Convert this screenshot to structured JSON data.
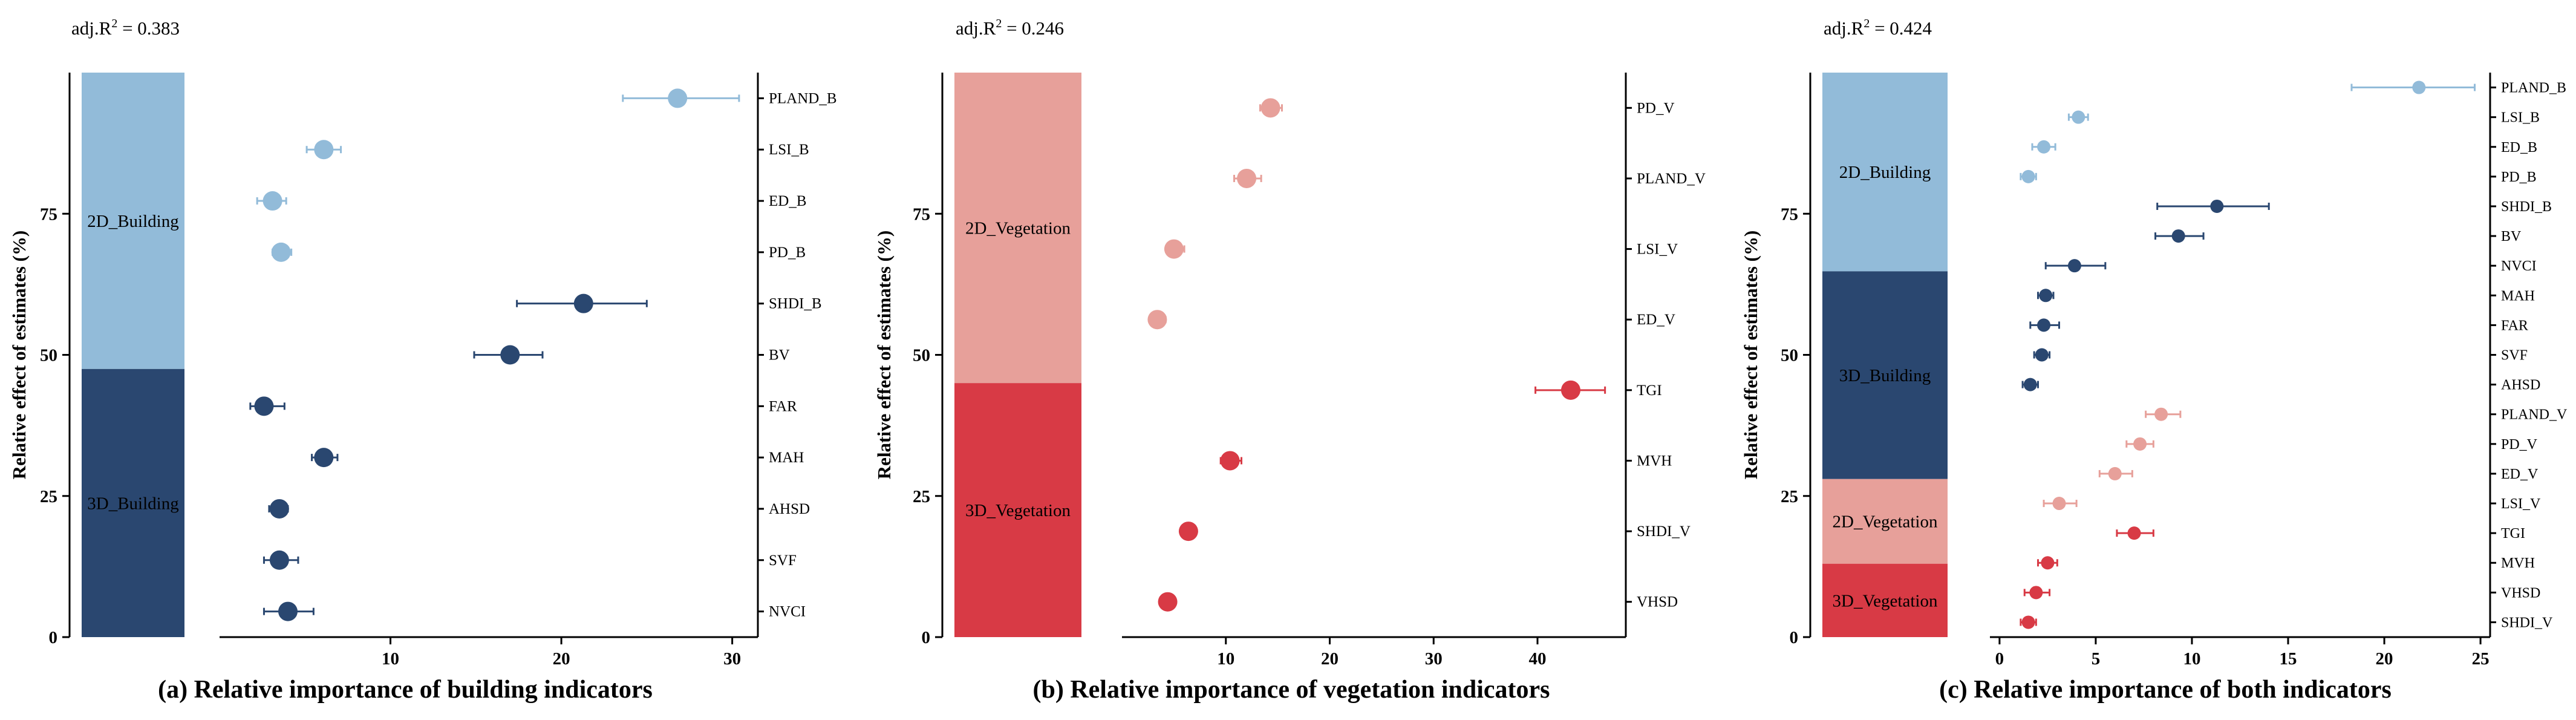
{
  "colors": {
    "building_2d": "#92bbd9",
    "building_3d": "#2a4770",
    "vegetation_2d": "#e7a09a",
    "vegetation_3d": "#d83a45"
  },
  "chart_data": [
    {
      "type": "scatter",
      "panel_id": "a",
      "adj_r2_label": "adj.R",
      "adj_r2_sup": "2",
      "adj_r2_value": " = 0.383",
      "caption_prefix": "(a)",
      "caption_text": " Relative importance of building indicators",
      "ylabel": "Relative effect of estimates (%)",
      "yticks": [
        "0",
        "25",
        "50",
        "75"
      ],
      "ytick_values": [
        0,
        25,
        50,
        75
      ],
      "ylim": [
        0,
        100
      ],
      "xticks": [
        "10",
        "20",
        "30"
      ],
      "xtick_values": [
        10,
        20,
        30
      ],
      "xlim": [
        0,
        31.5
      ],
      "groups": [
        {
          "label": "2D_Building",
          "share": 52.5,
          "color": "#92bbd9"
        },
        {
          "label": "3D_Building",
          "share": 47.5,
          "color": "#2a4770"
        }
      ],
      "points": [
        {
          "label": "PLAND_B",
          "value": 26.8,
          "err_low": 23.6,
          "err_high": 30.4,
          "color": "#92bbd9"
        },
        {
          "label": "LSI_B",
          "value": 6.1,
          "err_low": 5.1,
          "err_high": 7.1,
          "color": "#92bbd9"
        },
        {
          "label": "ED_B",
          "value": 3.1,
          "err_low": 2.2,
          "err_high": 3.9,
          "color": "#92bbd9"
        },
        {
          "label": "PD_B",
          "value": 3.6,
          "err_low": 3.1,
          "err_high": 4.2,
          "color": "#92bbd9"
        },
        {
          "label": "SHDI_B",
          "value": 21.3,
          "err_low": 17.4,
          "err_high": 25.0,
          "color": "#2a4770"
        },
        {
          "label": "BV",
          "value": 17.0,
          "err_low": 14.9,
          "err_high": 18.9,
          "color": "#2a4770"
        },
        {
          "label": "FAR",
          "value": 2.6,
          "err_low": 1.8,
          "err_high": 3.8,
          "color": "#2a4770"
        },
        {
          "label": "MAH",
          "value": 6.1,
          "err_low": 5.4,
          "err_high": 6.9,
          "color": "#2a4770"
        },
        {
          "label": "AHSD",
          "value": 3.5,
          "err_low": 2.9,
          "err_high": 4.0,
          "color": "#2a4770"
        },
        {
          "label": "SVF",
          "value": 3.5,
          "err_low": 2.6,
          "err_high": 4.6,
          "color": "#2a4770"
        },
        {
          "label": "NVCI",
          "value": 4.0,
          "err_low": 2.6,
          "err_high": 5.5,
          "color": "#2a4770"
        }
      ]
    },
    {
      "type": "scatter",
      "panel_id": "b",
      "adj_r2_label": "adj.R",
      "adj_r2_sup": "2",
      "adj_r2_value": " = 0.246",
      "caption_prefix": "(b)",
      "caption_text": " Relative importance of vegetation indicators",
      "ylabel": "Relative effect of estimates (%)",
      "yticks": [
        "0",
        "25",
        "50",
        "75"
      ],
      "ytick_values": [
        0,
        25,
        50,
        75
      ],
      "ylim": [
        0,
        100
      ],
      "xticks": [
        "10",
        "20",
        "30",
        "40"
      ],
      "xtick_values": [
        10,
        20,
        30,
        40
      ],
      "xlim": [
        0,
        48.5
      ],
      "groups": [
        {
          "label": "2D_Vegetation",
          "share": 55.0,
          "color": "#e7a09a"
        },
        {
          "label": "3D_Vegetation",
          "share": 45.0,
          "color": "#d83a45"
        }
      ],
      "points": [
        {
          "label": "PD_V",
          "value": 14.3,
          "err_low": 13.3,
          "err_high": 15.4,
          "color": "#e7a09a"
        },
        {
          "label": "PLAND_V",
          "value": 12.0,
          "err_low": 10.8,
          "err_high": 13.4,
          "color": "#e7a09a"
        },
        {
          "label": "LSI_V",
          "value": 5.0,
          "err_low": 4.3,
          "err_high": 6.0,
          "color": "#e7a09a"
        },
        {
          "label": "ED_V",
          "value": 3.4,
          "err_low": 2.8,
          "err_high": 4.2,
          "color": "#e7a09a"
        },
        {
          "label": "TGI",
          "value": 43.2,
          "err_low": 39.8,
          "err_high": 46.5,
          "color": "#d83a45"
        },
        {
          "label": "MVH",
          "value": 10.4,
          "err_low": 9.5,
          "err_high": 11.5,
          "color": "#d83a45"
        },
        {
          "label": "SHDI_V",
          "value": 6.4,
          "err_low": 5.7,
          "err_high": 7.1,
          "color": "#d83a45"
        },
        {
          "label": "VHSD",
          "value": 4.4,
          "err_low": 3.8,
          "err_high": 5.1,
          "color": "#d83a45"
        }
      ]
    },
    {
      "type": "scatter",
      "panel_id": "c",
      "adj_r2_label": "adj.R",
      "adj_r2_sup": "2",
      "adj_r2_value": " = 0.424",
      "caption_prefix": "(c)",
      "caption_text": " Relative importance of both indicators",
      "ylabel": "Relative effect of estimates (%)",
      "yticks": [
        "0",
        "25",
        "50",
        "75"
      ],
      "ytick_values": [
        0,
        25,
        50,
        75
      ],
      "ylim": [
        0,
        100
      ],
      "xticks": [
        "0",
        "5",
        "10",
        "15",
        "20",
        "25"
      ],
      "xtick_values": [
        0,
        5,
        10,
        15,
        20,
        25
      ],
      "xlim": [
        -0.5,
        25.5
      ],
      "groups": [
        {
          "label": "2D_Building",
          "share": 35.2,
          "color": "#92bbd9"
        },
        {
          "label": "3D_Building",
          "share": 36.8,
          "color": "#2a4770"
        },
        {
          "label": "2D_Vegetation",
          "share": 15.0,
          "color": "#e7a09a"
        },
        {
          "label": "3D_Vegetation",
          "share": 13.0,
          "color": "#d83a45"
        }
      ],
      "points": [
        {
          "label": "PLAND_B",
          "value": 21.8,
          "err_low": 18.3,
          "err_high": 24.7,
          "color": "#92bbd9"
        },
        {
          "label": "LSI_B",
          "value": 4.1,
          "err_low": 3.6,
          "err_high": 4.6,
          "color": "#92bbd9"
        },
        {
          "label": "ED_B",
          "value": 2.3,
          "err_low": 1.7,
          "err_high": 2.9,
          "color": "#92bbd9"
        },
        {
          "label": "PD_B",
          "value": 1.5,
          "err_low": 1.1,
          "err_high": 1.9,
          "color": "#92bbd9"
        },
        {
          "label": "SHDI_B",
          "value": 11.3,
          "err_low": 8.2,
          "err_high": 14.0,
          "color": "#2a4770"
        },
        {
          "label": "BV",
          "value": 9.3,
          "err_low": 8.1,
          "err_high": 10.6,
          "color": "#2a4770"
        },
        {
          "label": "NVCI",
          "value": 3.9,
          "err_low": 2.4,
          "err_high": 5.5,
          "color": "#2a4770"
        },
        {
          "label": "MAH",
          "value": 2.4,
          "err_low": 2.0,
          "err_high": 2.8,
          "color": "#2a4770"
        },
        {
          "label": "FAR",
          "value": 2.3,
          "err_low": 1.6,
          "err_high": 3.1,
          "color": "#2a4770"
        },
        {
          "label": "SVF",
          "value": 2.2,
          "err_low": 1.8,
          "err_high": 2.6,
          "color": "#2a4770"
        },
        {
          "label": "AHSD",
          "value": 1.6,
          "err_low": 1.2,
          "err_high": 2.0,
          "color": "#2a4770"
        },
        {
          "label": "PLAND_V",
          "value": 8.4,
          "err_low": 7.6,
          "err_high": 9.4,
          "color": "#e7a09a"
        },
        {
          "label": "PD_V",
          "value": 7.3,
          "err_low": 6.6,
          "err_high": 8.0,
          "color": "#e7a09a"
        },
        {
          "label": "ED_V",
          "value": 6.0,
          "err_low": 5.2,
          "err_high": 6.9,
          "color": "#e7a09a"
        },
        {
          "label": "LSI_V",
          "value": 3.1,
          "err_low": 2.3,
          "err_high": 4.0,
          "color": "#e7a09a"
        },
        {
          "label": "TGI",
          "value": 7.0,
          "err_low": 6.1,
          "err_high": 8.0,
          "color": "#d83a45"
        },
        {
          "label": "MVH",
          "value": 2.5,
          "err_low": 2.0,
          "err_high": 3.0,
          "color": "#d83a45"
        },
        {
          "label": "VHSD",
          "value": 1.9,
          "err_low": 1.3,
          "err_high": 2.6,
          "color": "#d83a45"
        },
        {
          "label": "SHDI_V",
          "value": 1.5,
          "err_low": 1.1,
          "err_high": 1.9,
          "color": "#d83a45"
        }
      ]
    }
  ]
}
